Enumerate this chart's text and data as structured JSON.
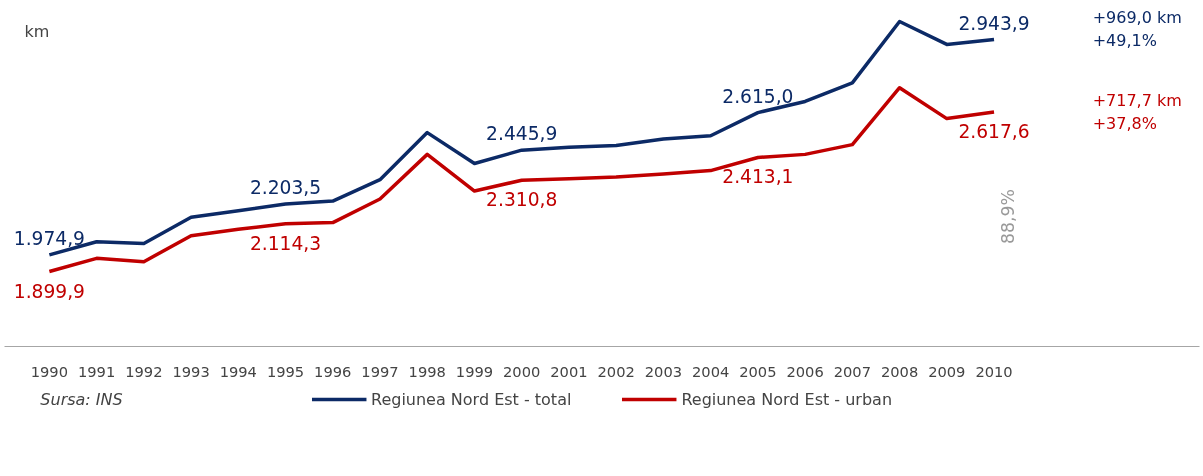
{
  "chart_data": {
    "type": "line",
    "categories": [
      "1990",
      "1991",
      "1992",
      "1993",
      "1994",
      "1995",
      "1996",
      "1997",
      "1998",
      "1999",
      "2000",
      "2001",
      "2002",
      "2003",
      "2004",
      "2005",
      "2006",
      "2007",
      "2008",
      "2009",
      "2010"
    ],
    "series": [
      {
        "name": "Regiunea Nord Est - total",
        "color": "#0c2a66",
        "values": [
          1974.9,
          2034,
          2026,
          2144,
          2173,
          2203.5,
          2217,
          2313,
          2525,
          2386,
          2445.9,
          2459,
          2467,
          2496,
          2511,
          2615.0,
          2665,
          2749,
          3025,
          2922,
          2943.9
        ],
        "value_labels": [
          "1.974,9",
          null,
          null,
          null,
          null,
          "2.203,5",
          null,
          null,
          null,
          null,
          "2.445,9",
          null,
          null,
          null,
          null,
          "2.615,0",
          null,
          null,
          null,
          null,
          "2.943,9"
        ]
      },
      {
        "name": "Regiunea Nord Est - urban",
        "color": "#c00000",
        "values": [
          1899.9,
          1959,
          1944,
          2061,
          2090,
          2114.3,
          2120,
          2226,
          2427,
          2262,
          2310.8,
          2317,
          2325,
          2339,
          2354,
          2413.1,
          2427,
          2471,
          2727,
          2588,
          2617.6
        ],
        "value_labels": [
          "1.899,9",
          null,
          null,
          null,
          null,
          "2.114,3",
          null,
          null,
          null,
          null,
          "2.310,8",
          null,
          null,
          null,
          null,
          "2.413,1",
          null,
          null,
          null,
          null,
          "2.617,6"
        ]
      }
    ],
    "annotations": [
      "km",
      "+969,0 km\n+49,1%",
      "+717,7 km\n+37,8%",
      "88,9%",
      "Sursa: INS"
    ],
    "legend": "bottom",
    "marker": "none",
    "line_style": "solid",
    "tick_labels": "x"
  }
}
